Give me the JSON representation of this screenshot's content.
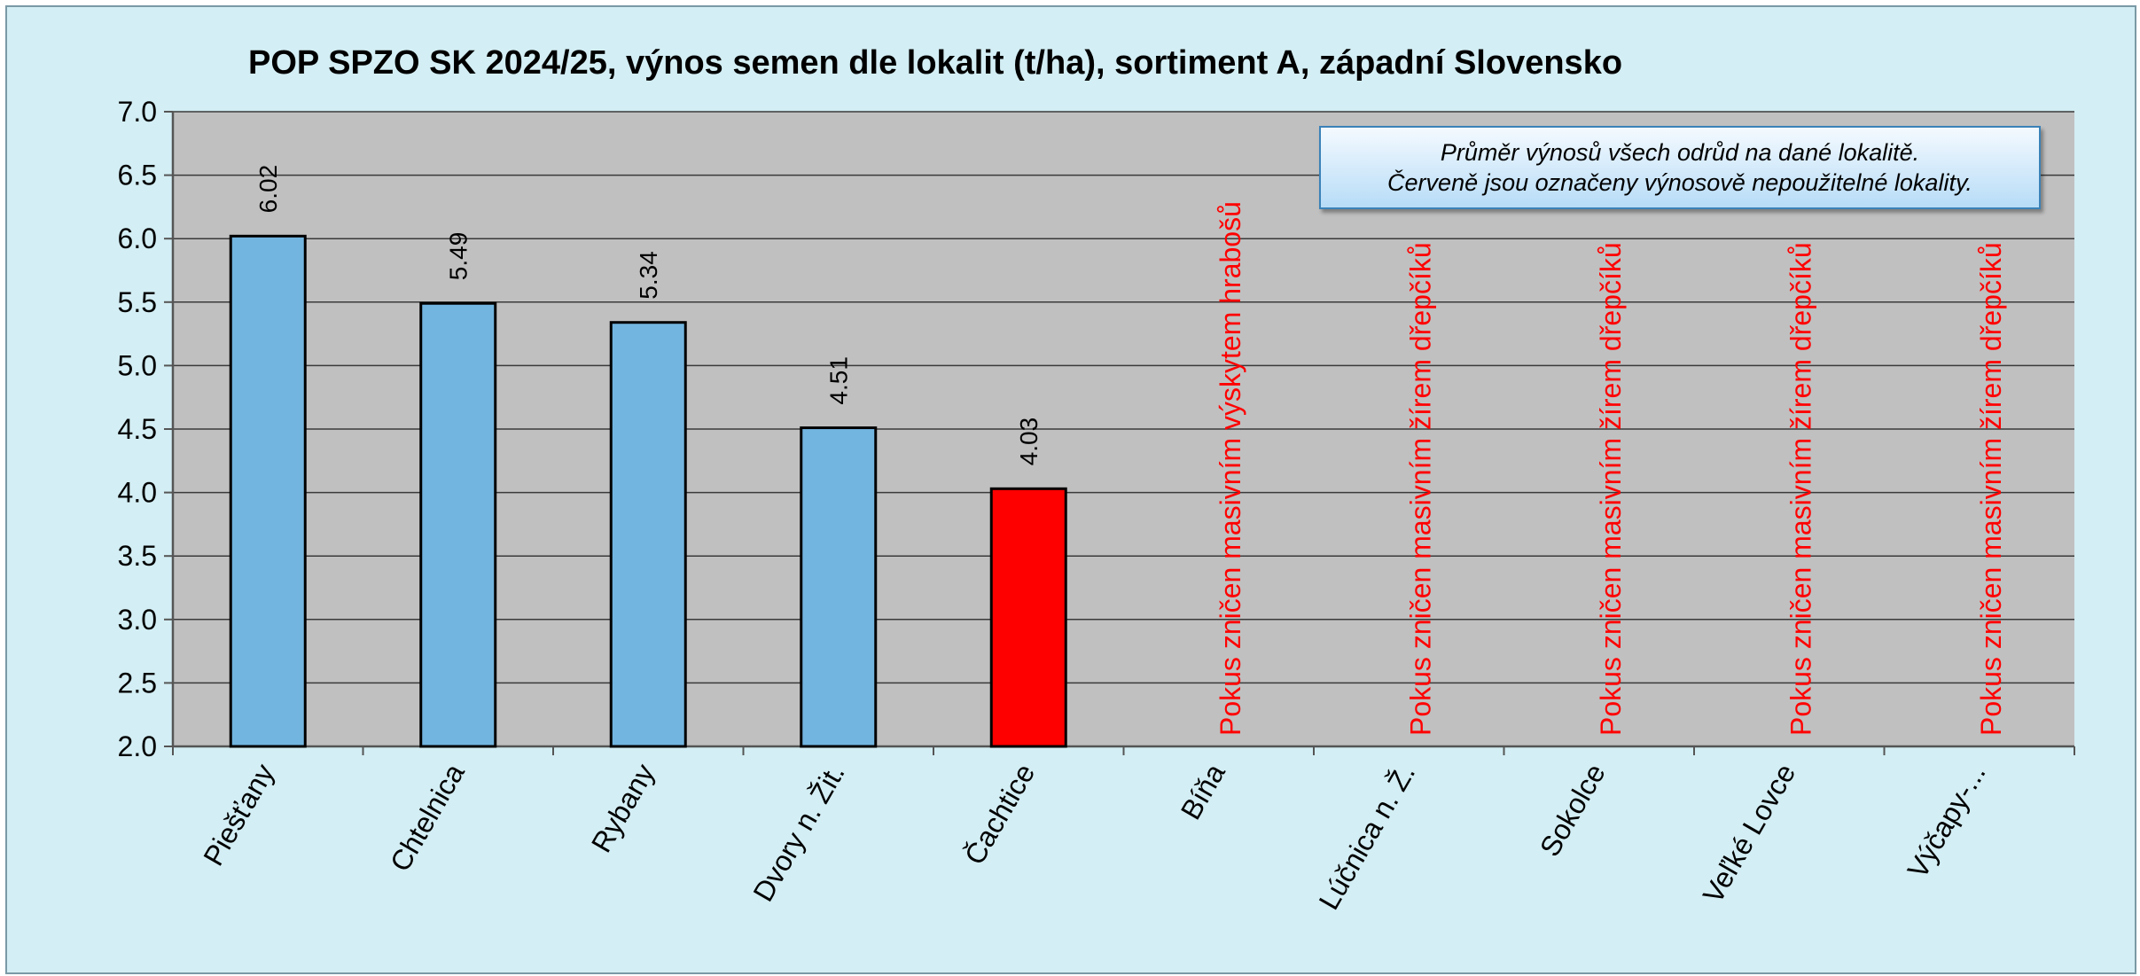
{
  "chart_data": {
    "type": "bar",
    "title": "POP SPZO SK 2024/25, výnos semen dle lokalit (t/ha), sortiment A, západní Slovensko",
    "categories": [
      "Piešťany",
      "Chtelnica",
      "Rybany",
      "Dvory n. Žit.",
      "Čachtice",
      "Bíňa",
      "Lúčnica n. Ž.",
      "Sokolce",
      "Veľké Lovce",
      "Výčapy-..."
    ],
    "values": [
      6.02,
      5.49,
      5.34,
      4.51,
      4.03,
      null,
      null,
      null,
      null,
      null
    ],
    "value_labels": [
      "6.02",
      "5.49",
      "5.34",
      "4.51",
      "4.03",
      "",
      "",
      "",
      "",
      ""
    ],
    "bar_colors": [
      "#72b5e0",
      "#72b5e0",
      "#72b5e0",
      "#72b5e0",
      "#ff0000",
      "",
      "",
      "",
      "",
      ""
    ],
    "notes": [
      "",
      "",
      "",
      "",
      "",
      "Pokus zničen masivním výskytem hrabošů",
      "Pokus zničen masivním žírem dřepčíků",
      "Pokus zničen masivním žírem dřepčíků",
      "Pokus zničen masivním žírem dřepčíků",
      "Pokus zničen masivním žírem dřepčíků"
    ],
    "note_color": "#ff0000",
    "ylim": [
      2.0,
      7.0
    ],
    "yticks": [
      "2.0",
      "2.5",
      "3.0",
      "3.5",
      "4.0",
      "4.5",
      "5.0",
      "5.5",
      "6.0",
      "6.5",
      "7.0"
    ],
    "xlabel": "",
    "ylabel": "",
    "grid": true,
    "plot_background": "#c0c0c0",
    "legend": "none"
  },
  "annotation": {
    "line1": "Průměr výnosů všech odrůd na dané lokalitě.",
    "line2": "Červeně jsou označeny výnosově nepoužitelné lokality."
  }
}
